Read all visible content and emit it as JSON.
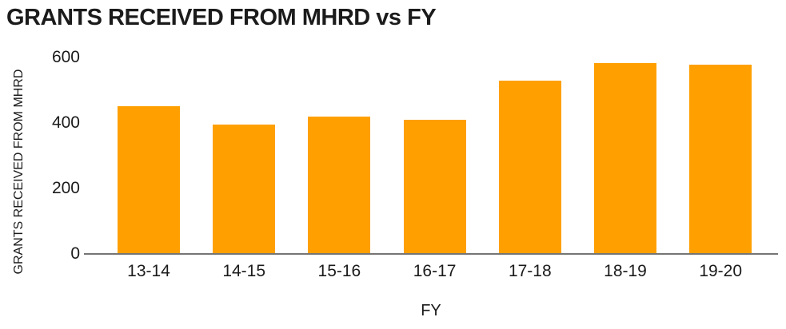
{
  "chart_data": {
    "type": "bar",
    "title": "GRANTS RECEIVED FROM MHRD vs FY",
    "xlabel": "FY",
    "ylabel": "GRANTS RECEIVED FROM MHRD",
    "categories": [
      "13-14",
      "14-15",
      "15-16",
      "16-17",
      "17-18",
      "18-19",
      "19-20"
    ],
    "values": [
      450,
      395,
      420,
      410,
      530,
      583,
      577
    ],
    "yticks": [
      0,
      200,
      400,
      600
    ],
    "ylim": [
      0,
      600
    ],
    "grid": false,
    "legend": "none",
    "bar_color": "#ffa000",
    "axis_color": "#757575",
    "text_color": "#1b1b1b"
  }
}
